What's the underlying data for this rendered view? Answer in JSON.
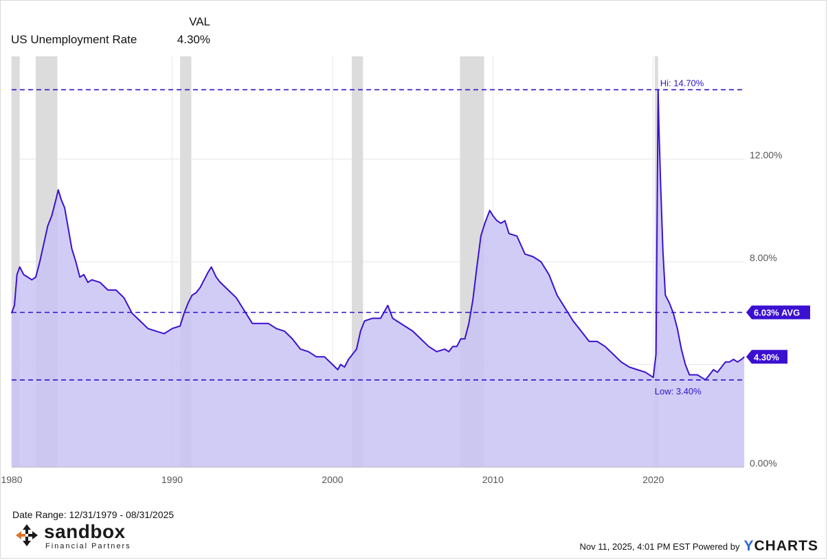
{
  "legend": {
    "header": "VAL",
    "series_name": "US Unemployment Rate",
    "series_value": "4.30%"
  },
  "footer": {
    "date_range": "Date Range: 12/31/1979 - 08/31/2025",
    "timestamp": "Nov 11, 2025, 4:01 PM EST Powered by",
    "provider_y": "Y",
    "provider_rest": "CHARTS"
  },
  "logo": {
    "brand": "sandbox",
    "tagline": "Financial Partners"
  },
  "colors": {
    "line": "#3b10d0",
    "fill": "#c9c3f5",
    "recession": "#dcdcdc",
    "ref_line": "#2a12c8",
    "label_bg": "#3b10d0"
  },
  "chart_data": {
    "type": "area",
    "title": "",
    "xlabel": "",
    "ylabel": "",
    "xlim": [
      "1979-12-31",
      "2025-08-31"
    ],
    "ylim": [
      0,
      16
    ],
    "y_ticks": [
      {
        "value": 0,
        "label": "0.00%"
      },
      {
        "value": 4,
        "label": ""
      },
      {
        "value": 8,
        "label": "8.00%"
      },
      {
        "value": 12,
        "label": "12.00%"
      }
    ],
    "x_ticks": [
      {
        "year": 1980,
        "label": "1980"
      },
      {
        "year": 1990,
        "label": "1990"
      },
      {
        "year": 2000,
        "label": "2000"
      },
      {
        "year": 2010,
        "label": "2010"
      },
      {
        "year": 2020,
        "label": "2020"
      }
    ],
    "grid": true,
    "recessions": [
      [
        1980.0,
        1980.5
      ],
      [
        1981.5,
        1982.85
      ],
      [
        1990.5,
        1991.2
      ],
      [
        2001.2,
        2001.9
      ],
      [
        2007.95,
        2009.45
      ],
      [
        2020.1,
        2020.3
      ]
    ],
    "reference_lines": [
      {
        "kind": "high",
        "value": 14.7,
        "label": "Hi: 14.70%"
      },
      {
        "kind": "average",
        "value": 6.03,
        "label": "6.03% AVG"
      },
      {
        "kind": "low",
        "value": 3.4,
        "label": "Low: 3.40%"
      }
    ],
    "last_value": {
      "value": 4.3,
      "label": "4.30%"
    },
    "series": [
      {
        "name": "US Unemployment Rate",
        "x": [
          1979.99,
          1980.17,
          1980.33,
          1980.5,
          1980.75,
          1981.0,
          1981.25,
          1981.5,
          1981.75,
          1982.0,
          1982.25,
          1982.5,
          1982.75,
          1982.9,
          1983.1,
          1983.3,
          1983.5,
          1983.75,
          1984.0,
          1984.25,
          1984.5,
          1984.75,
          1985.0,
          1985.5,
          1986.0,
          1986.5,
          1987.0,
          1987.5,
          1988.0,
          1988.5,
          1989.0,
          1989.5,
          1990.0,
          1990.5,
          1990.75,
          1991.0,
          1991.25,
          1991.5,
          1991.75,
          1992.0,
          1992.25,
          1992.45,
          1992.75,
          1993.0,
          1993.5,
          1994.0,
          1994.5,
          1995.0,
          1995.5,
          1996.0,
          1996.5,
          1997.0,
          1997.5,
          1998.0,
          1998.5,
          1999.0,
          1999.5,
          2000.0,
          2000.33,
          2000.5,
          2000.75,
          2001.0,
          2001.25,
          2001.5,
          2001.75,
          2002.0,
          2002.5,
          2003.0,
          2003.45,
          2003.75,
          2004.0,
          2004.5,
          2005.0,
          2005.5,
          2006.0,
          2006.5,
          2007.0,
          2007.25,
          2007.5,
          2007.75,
          2008.0,
          2008.25,
          2008.5,
          2008.75,
          2009.0,
          2009.25,
          2009.5,
          2009.8,
          2010.0,
          2010.25,
          2010.5,
          2010.75,
          2011.0,
          2011.5,
          2012.0,
          2012.5,
          2013.0,
          2013.5,
          2014.0,
          2014.5,
          2015.0,
          2015.5,
          2016.0,
          2016.5,
          2017.0,
          2017.5,
          2018.0,
          2018.5,
          2019.0,
          2019.5,
          2020.0,
          2020.17,
          2020.3,
          2020.35,
          2020.45,
          2020.6,
          2020.75,
          2021.0,
          2021.25,
          2021.5,
          2021.75,
          2022.0,
          2022.25,
          2022.5,
          2022.75,
          2023.0,
          2023.25,
          2023.5,
          2023.75,
          2024.0,
          2024.25,
          2024.5,
          2024.75,
          2025.0,
          2025.25,
          2025.5,
          2025.67
        ],
        "values": [
          6.0,
          6.3,
          7.5,
          7.8,
          7.5,
          7.4,
          7.3,
          7.4,
          8.0,
          8.7,
          9.4,
          9.8,
          10.4,
          10.8,
          10.4,
          10.1,
          9.4,
          8.5,
          8.0,
          7.4,
          7.5,
          7.2,
          7.3,
          7.2,
          6.9,
          6.9,
          6.6,
          6.0,
          5.7,
          5.4,
          5.3,
          5.2,
          5.4,
          5.5,
          6.0,
          6.4,
          6.7,
          6.8,
          7.0,
          7.3,
          7.6,
          7.8,
          7.4,
          7.2,
          6.9,
          6.6,
          6.1,
          5.6,
          5.6,
          5.6,
          5.4,
          5.3,
          5.0,
          4.6,
          4.5,
          4.3,
          4.3,
          4.0,
          3.8,
          4.0,
          3.9,
          4.2,
          4.4,
          4.6,
          5.3,
          5.7,
          5.8,
          5.8,
          6.3,
          5.8,
          5.7,
          5.5,
          5.3,
          5.0,
          4.7,
          4.5,
          4.6,
          4.5,
          4.7,
          4.7,
          5.0,
          5.0,
          5.6,
          6.5,
          7.8,
          9.0,
          9.5,
          10.0,
          9.8,
          9.6,
          9.5,
          9.6,
          9.1,
          9.0,
          8.3,
          8.2,
          8.0,
          7.5,
          6.7,
          6.2,
          5.7,
          5.3,
          4.9,
          4.9,
          4.7,
          4.4,
          4.1,
          3.9,
          3.8,
          3.7,
          3.5,
          4.4,
          14.7,
          13.3,
          11.1,
          8.4,
          6.7,
          6.4,
          6.0,
          5.4,
          4.6,
          4.0,
          3.6,
          3.6,
          3.6,
          3.5,
          3.4,
          3.6,
          3.8,
          3.7,
          3.9,
          4.1,
          4.1,
          4.2,
          4.1,
          4.2,
          4.3
        ]
      }
    ]
  }
}
